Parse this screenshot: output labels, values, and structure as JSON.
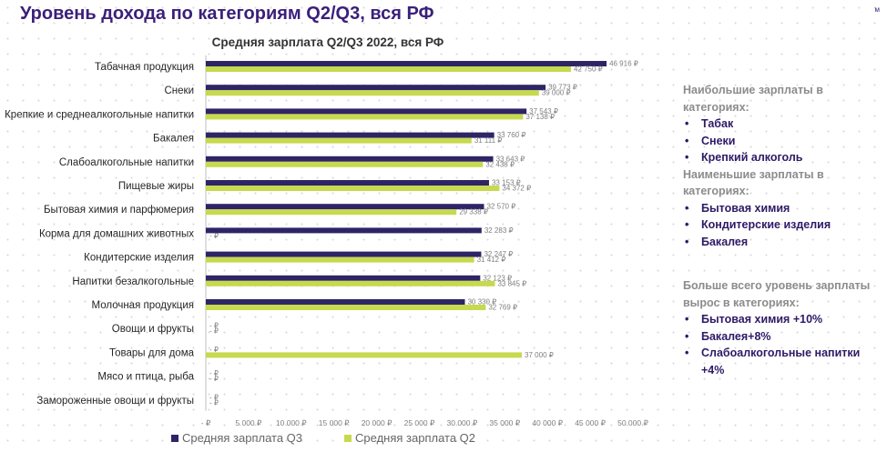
{
  "page_title": "Уровень дохода по категориям Q2/Q3, вся РФ",
  "corner_mark": "м",
  "colors": {
    "q3": "#2d2566",
    "q2": "#c7d94f",
    "title": "#3b1f7a",
    "sidebar_heading": "#8c8c8c",
    "sidebar_item": "#2e1a66"
  },
  "chart_data": {
    "type": "bar",
    "orientation": "horizontal",
    "title": "Средняя зарплата Q2/Q3 2022, вся РФ",
    "categories": [
      "Табачная продукция",
      "Снеки",
      "Крепкие и среднеалкогольные напитки",
      "Бакалея",
      "Слабоалкогольные напитки",
      "Пищевые жиры",
      "Бытовая химия и парфюмерия",
      "Корма для домашних животных",
      "Кондитерские изделия",
      "Напитки безалкогольные",
      "Молочная продукция",
      "Овощи и фрукты",
      "Товары для дома",
      "Мясо и птица, рыба",
      "Замороженные овощи и фрукты"
    ],
    "series": [
      {
        "name": "Средняя зарплата Q3",
        "values": [
          46916,
          39773,
          37543,
          33760,
          33643,
          33153,
          32570,
          32283,
          32247,
          32123,
          30330,
          0,
          0,
          0,
          0
        ],
        "labels": [
          "46 916 ₽",
          "39 773 ₽",
          "37 543 ₽",
          "33 760 ₽",
          "33 643 ₽",
          "33 153 ₽",
          "32 570 ₽",
          "32 283 ₽",
          "32 247 ₽",
          "32 123 ₽",
          "30 330 ₽",
          "- ₽",
          "- ₽",
          "- ₽",
          "- ₽"
        ]
      },
      {
        "name": "Средняя зарплата Q2",
        "values": [
          42750,
          39000,
          37138,
          31111,
          32438,
          34372,
          29338,
          0,
          31412,
          33845,
          32769,
          0,
          37000,
          0,
          0
        ],
        "labels": [
          "42 750 ₽",
          "39 000 ₽",
          "37 138 ₽",
          "31 111 ₽",
          "32 438 ₽",
          "34 372 ₽",
          "29 338 ₽",
          "- ₽",
          "31 412 ₽",
          "33 845 ₽",
          "32 769 ₽",
          "- ₽",
          "37 000 ₽",
          "- ₽",
          "- ₽"
        ]
      }
    ],
    "xlim": [
      0,
      50000
    ],
    "xticks": [
      "- ₽",
      "5 000 ₽",
      "10 000 ₽",
      "15 000 ₽",
      "20 000 ₽",
      "25 000 ₽",
      "30 000 ₽",
      "35 000 ₽",
      "40 000 ₽",
      "45 000 ₽",
      "50 000 ₽"
    ],
    "legend_position": "bottom",
    "grid": false
  },
  "sidebar": {
    "top_heading": "Наибольшие зарплаты в категориях:",
    "top_items": [
      "Табак",
      "Снеки",
      "Крепкий алкоголь"
    ],
    "low_heading": "Наименьшие зарплаты в категориях:",
    "low_items": [
      "Бытовая химия",
      "Кондитерские изделия",
      "Бакалея"
    ],
    "growth_heading": "Больше всего уровень зарплаты вырос в категориях:",
    "growth_items": [
      "Бытовая химия +10%",
      "Бакалея+8%",
      "Слабоалкогольные напитки +4%"
    ]
  }
}
